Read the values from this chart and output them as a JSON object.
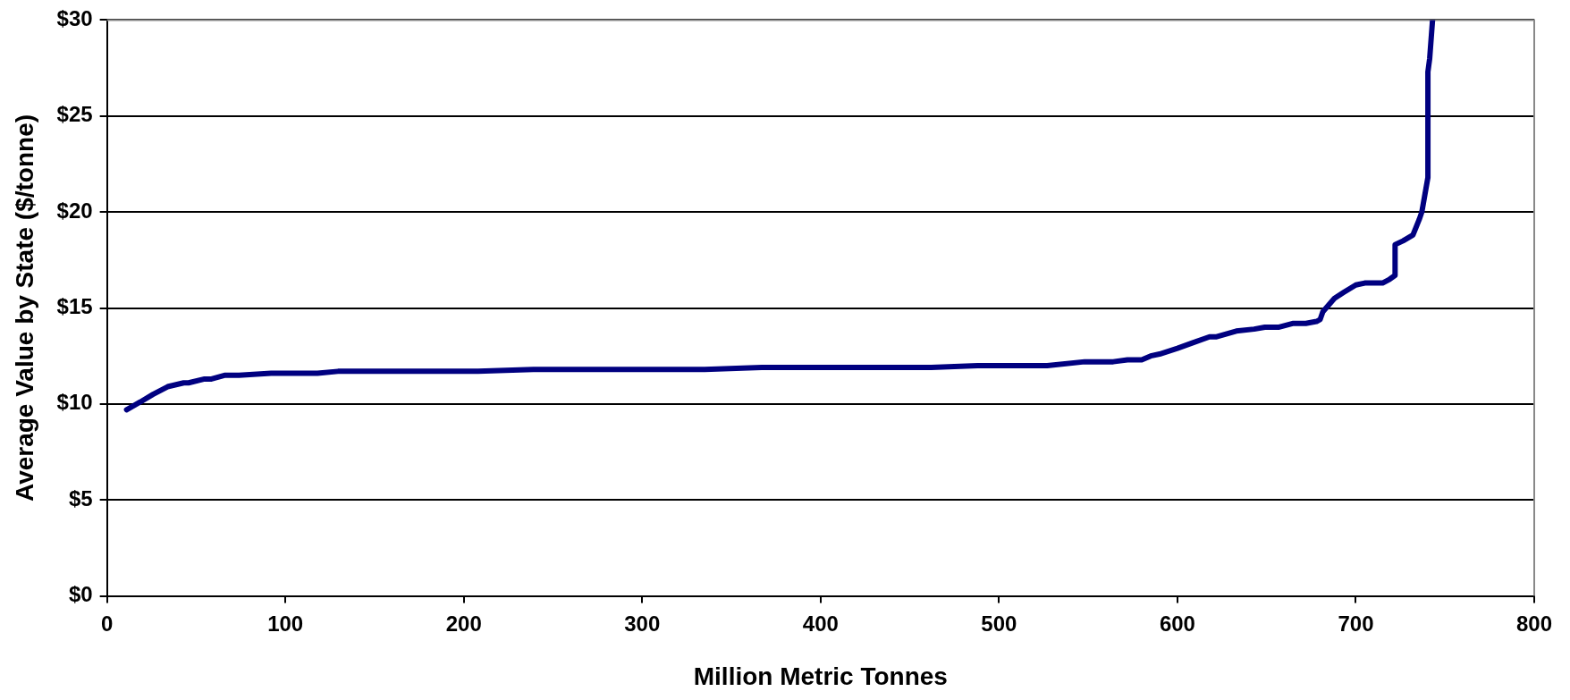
{
  "chart_data": {
    "type": "line",
    "xlabel": "Million Metric Tonnes",
    "ylabel": "Average Value by State ($/tonne)",
    "x": [
      11,
      18.6,
      25.8,
      34,
      43,
      45.7,
      54.7,
      58.6,
      66.3,
      74,
      92,
      118,
      129.5,
      208,
      239,
      335,
      367,
      462,
      488,
      527,
      548,
      564,
      572,
      580,
      585,
      590,
      600,
      609,
      618,
      622,
      633,
      643,
      649,
      657,
      665,
      672,
      678,
      680,
      681.5,
      688,
      693,
      700,
      705,
      715,
      719,
      722,
      722,
      726.5,
      732,
      735.5,
      737,
      740.4,
      740.4,
      741.4,
      743
    ],
    "series": [
      {
        "color": "#000080",
        "values": [
          9.7,
          10.1,
          10.5,
          10.9,
          11.1,
          11.1,
          11.3,
          11.3,
          11.5,
          11.5,
          11.6,
          11.6,
          11.7,
          11.7,
          11.8,
          11.8,
          11.9,
          11.9,
          12.0,
          12.0,
          12.2,
          12.2,
          12.3,
          12.3,
          12.5,
          12.6,
          12.9,
          13.2,
          13.5,
          13.5,
          13.8,
          13.9,
          14.0,
          14.0,
          14.2,
          14.2,
          14.3,
          14.4,
          14.8,
          15.5,
          15.8,
          16.2,
          16.3,
          16.3,
          16.5,
          16.7,
          18.3,
          18.5,
          18.8,
          19.6,
          20.0,
          21.8,
          27.3,
          28.0,
          30.0
        ]
      }
    ],
    "xlim": [
      0,
      800
    ],
    "xticks": [
      0,
      100,
      200,
      300,
      400,
      500,
      600,
      700,
      800
    ],
    "ylim": [
      0,
      30
    ],
    "yticks": [
      {
        "value": 0,
        "label": "$0"
      },
      {
        "value": 5,
        "label": "$5"
      },
      {
        "value": 10,
        "label": "$10"
      },
      {
        "value": 15,
        "label": "$15"
      },
      {
        "value": 20,
        "label": "$20"
      },
      {
        "value": 25,
        "label": "$25"
      },
      {
        "value": 30,
        "label": "$30"
      }
    ],
    "grid": "y",
    "legend": false,
    "marker": "none",
    "line_style": "solid"
  }
}
